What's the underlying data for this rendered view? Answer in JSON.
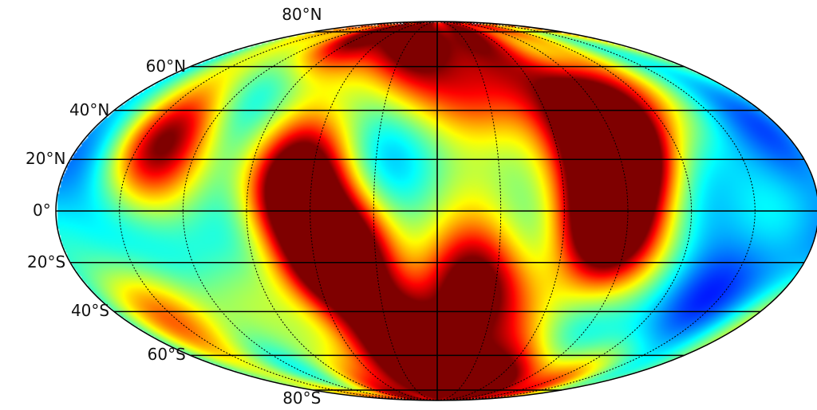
{
  "projection": "mollweide",
  "colormap": "jet",
  "latitude_labels": [
    {
      "lat": 80,
      "text": "80°N"
    },
    {
      "lat": 60,
      "text": "60°N"
    },
    {
      "lat": 40,
      "text": "40°N"
    },
    {
      "lat": 20,
      "text": "20°N"
    },
    {
      "lat": 0,
      "text": "0°"
    },
    {
      "lat": -20,
      "text": "20°S"
    },
    {
      "lat": -40,
      "text": "40°S"
    },
    {
      "lat": -60,
      "text": "60°S"
    },
    {
      "lat": -80,
      "text": "80°S"
    }
  ],
  "parallels_deg": [
    -80,
    -60,
    -40,
    -20,
    0,
    20,
    40,
    60,
    80
  ],
  "meridians_deg": [
    -150,
    -120,
    -90,
    -60,
    -30,
    0,
    30,
    60,
    90,
    120,
    150
  ],
  "hotspots": [
    {
      "lon": -140,
      "lat": 28,
      "strength": 0.75
    },
    {
      "lon": -68,
      "lat": 8,
      "strength": 1.0
    },
    {
      "lon": -50,
      "lat": -18,
      "strength": 0.95
    },
    {
      "lon": -40,
      "lat": 75,
      "strength": 0.85
    },
    {
      "lon": -30,
      "lat": -52,
      "strength": 0.7
    },
    {
      "lon": 15,
      "lat": -28,
      "strength": 0.8
    },
    {
      "lon": 25,
      "lat": 45,
      "strength": 0.55
    },
    {
      "lon": 40,
      "lat": -75,
      "strength": 0.85
    },
    {
      "lon": 78,
      "lat": -5,
      "strength": 1.0
    },
    {
      "lon": 92,
      "lat": 22,
      "strength": 0.95
    },
    {
      "lon": 90,
      "lat": 45,
      "strength": 0.65
    },
    {
      "lon": -150,
      "lat": -38,
      "strength": 0.55
    }
  ],
  "colors": {
    "grid": "#000000",
    "background": "#ffffff"
  }
}
